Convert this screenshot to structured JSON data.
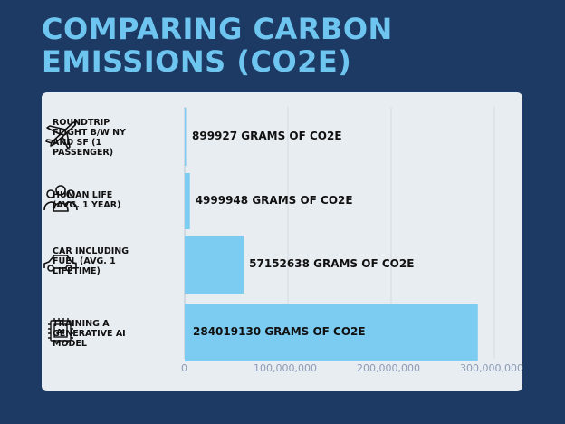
{
  "header": {
    "title": "COMPARING CARBON EMISSIONS (CO2E)"
  },
  "chart_data": {
    "type": "bar",
    "orientation": "horizontal",
    "title": "COMPARING CARBON EMISSIONS (CO2E)",
    "categories": [
      "ROUNDTRIP FLIGHT B/W NY AND SF (1 PASSENGER)",
      "HUMAN LIFE (AVG. 1 YEAR)",
      "CAR INCLUDING FUEL (AVG. 1 LIFETIME)",
      "TRAINING A GENERATIVE AI MODEL"
    ],
    "values": [
      899927,
      4999948,
      57152638,
      284019130
    ],
    "data_labels": [
      "899927 GRAMS OF CO2E",
      "4999948 GRAMS OF CO2E",
      "57152638 GRAMS OF CO2E",
      "284019130 GRAMS OF CO2E"
    ],
    "category_icons": [
      "airplane-icon",
      "people-group-icon",
      "car-icon",
      "ai-chip-icon"
    ],
    "xlim": [
      0,
      300000000
    ],
    "xticks": [
      0,
      100000000,
      200000000,
      300000000
    ],
    "xtick_labels": [
      "0",
      "100,000,000",
      "200,000,000",
      "300,000,000"
    ],
    "grid": true,
    "legend": "none",
    "colors": {
      "bar": "#7ccbf0",
      "background": "#1c3a64",
      "panel": "#e8edf1",
      "title": "#6ec6f0",
      "tick": "#8c9ab7",
      "grid": "#d3dae2"
    }
  }
}
